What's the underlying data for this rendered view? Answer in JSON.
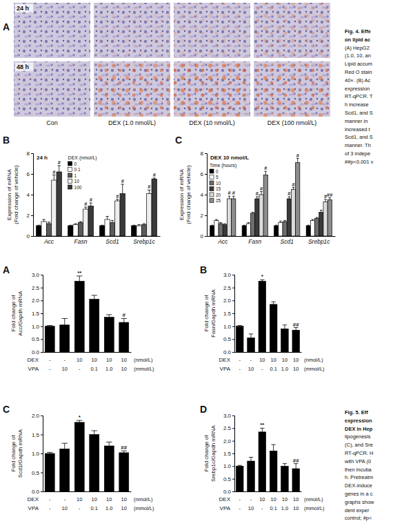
{
  "micrograph": {
    "panel": "A",
    "rows": [
      "24 h",
      "48 h"
    ],
    "columns": [
      "Con",
      "DEX (1.0 nmol/L)",
      "DEX (10 nmol/L)",
      "DEX (100 nmol/L)"
    ]
  },
  "captions": [
    {
      "title_lines": [
        "Fig. 4. Effe",
        "on lipid ac"
      ],
      "lines": [
        "(A) HepG2",
        "(1.0, 10, an",
        "Lipid accum",
        "Red O stain",
        "40×. (B) Ac",
        "expression",
        "RT-qPCR. T",
        "h increase",
        "Scd1, and S",
        "manner in",
        "increased t",
        "Scd1, and S",
        "manner. Th",
        "of 3 indepe",
        "##p<0.001 v"
      ]
    },
    {
      "title_lines": [
        "Fig. 5. Eff",
        "expression",
        "DEX in Hep"
      ],
      "lines": [
        "lipogenesis",
        "(C), and Sre",
        "RT-qPCR. H",
        "with VPA (0",
        "then incuba",
        "h. Pretreatm",
        "DEX-induce",
        "genes in a c",
        "graphs show",
        "dent exper",
        "control; #p<"
      ]
    }
  ],
  "chart_data": [
    {
      "type": "bar",
      "panel": "B",
      "annotation": "24 h",
      "ylabel": "Expression of mRNA (Fold change of vehicle)",
      "categories": [
        "Acc",
        "Fasn",
        "Scd1",
        "Srebp1c"
      ],
      "legend_title": "DEX (nmol/L)",
      "legend": "top",
      "ylim": [
        0,
        8
      ],
      "yticks": [
        0,
        2,
        4,
        6,
        8
      ],
      "grid": false,
      "series": [
        {
          "name": "0",
          "color": "#000000",
          "values": [
            1.0,
            1.0,
            1.0,
            1.0
          ],
          "errors": [
            0.05,
            0.05,
            0.05,
            0.05
          ],
          "sig_labels": [
            null,
            null,
            null,
            null
          ]
        },
        {
          "name": "0.1",
          "color": "#ffffff",
          "values": [
            1.4,
            1.1,
            1.6,
            1.0
          ],
          "errors": [
            0.2,
            0.1,
            0.3,
            0.1
          ],
          "sig_labels": [
            null,
            null,
            null,
            null
          ]
        },
        {
          "name": "1",
          "color": "#5a5a5a",
          "values": [
            1.2,
            1.3,
            1.3,
            1.1
          ],
          "errors": [
            0.15,
            0.1,
            0.2,
            0.1
          ],
          "sig_labels": [
            null,
            null,
            null,
            null
          ]
        },
        {
          "name": "10",
          "color": "#eeeeee",
          "values": [
            5.4,
            2.6,
            3.4,
            4.1
          ],
          "errors": [
            0.5,
            0.2,
            0.15,
            0.35
          ],
          "sig_labels": [
            "#",
            "#",
            "#",
            "#"
          ]
        },
        {
          "name": "100",
          "color": "#3a3a3a",
          "values": [
            6.2,
            2.9,
            4.1,
            5.5
          ],
          "errors": [
            0.6,
            0.3,
            0.9,
            0.1
          ],
          "sig_labels": [
            "#",
            "#",
            "#",
            "#"
          ]
        }
      ]
    },
    {
      "type": "bar",
      "panel": "C",
      "annotation": "DEX 10 nmol/L",
      "ylabel": "Expression of mRNA (Fold change of vehicle)",
      "categories": [
        "Acc",
        "Fasn",
        "Scd1",
        "Srebp1c"
      ],
      "legend_title": "Time (hours)",
      "legend": "top-left",
      "ylim": [
        0,
        8
      ],
      "yticks": [
        0,
        2,
        4,
        6,
        8
      ],
      "grid": false,
      "series": [
        {
          "name": "0",
          "color": "#000000",
          "values": [
            1.0,
            1.0,
            1.0,
            1.0
          ],
          "errors": [
            0.05,
            0.05,
            0.05,
            0.05
          ],
          "sig_labels": [
            null,
            null,
            null,
            null
          ]
        },
        {
          "name": "5",
          "color": "#ffffff",
          "values": [
            1.5,
            1.2,
            1.3,
            1.5
          ],
          "errors": [
            0.1,
            0.1,
            0.15,
            0.1
          ],
          "sig_labels": [
            null,
            null,
            null,
            null
          ]
        },
        {
          "name": "10",
          "color": "#6e6e6e",
          "values": [
            1.2,
            2.2,
            1.4,
            1.7
          ],
          "errors": [
            0.1,
            0.1,
            0.1,
            0.1
          ],
          "sig_labels": [
            null,
            null,
            null,
            null
          ]
        },
        {
          "name": "15",
          "color": "#3a3a3a",
          "values": [
            1.1,
            3.6,
            3.6,
            2.3
          ],
          "errors": [
            0.1,
            0.2,
            0.2,
            0.2
          ],
          "sig_labels": [
            null,
            "#",
            "#",
            null
          ]
        },
        {
          "name": "20",
          "color": "#dcdcdc",
          "values": [
            3.6,
            4.0,
            4.5,
            3.3
          ],
          "errors": [
            0.25,
            0.3,
            0.2,
            0.25
          ],
          "sig_labels": [
            "#",
            "#",
            "#",
            "#"
          ]
        },
        {
          "name": "25",
          "color": "#8c8c8c",
          "values": [
            3.6,
            5.9,
            7.1,
            3.5
          ],
          "errors": [
            0.25,
            0.35,
            0.4,
            0.2
          ],
          "sig_labels": [
            "#",
            "#",
            "#",
            "##"
          ]
        }
      ]
    },
    {
      "type": "bar",
      "panel": "A",
      "ylabel": "Fold change of Acc/Gapdh mRNA",
      "color": "#000000",
      "category_rows": [
        {
          "name": "DEX",
          "labels": [
            "-",
            "-",
            "10",
            "10",
            "10",
            "10"
          ],
          "unit": "(nmol/L)"
        },
        {
          "name": "VPA",
          "labels": [
            "-",
            "10",
            "-",
            "0.1",
            "1.0",
            "10"
          ],
          "unit": "(mmol/L)"
        }
      ],
      "values": [
        1.0,
        1.05,
        2.75,
        2.05,
        1.35,
        1.15
      ],
      "errors": [
        0.03,
        0.25,
        0.2,
        0.15,
        0.1,
        0.15
      ],
      "sig_labels": [
        null,
        null,
        "**",
        null,
        null,
        "#"
      ],
      "ylim": [
        0,
        3
      ],
      "yticks": [
        {
          "value": 0,
          "label": "0.0"
        },
        0.5,
        {
          "value": 1,
          "label": "1.0"
        },
        1.5,
        {
          "value": 2,
          "label": "2.0"
        },
        2.5,
        {
          "value": 3,
          "label": "3.0"
        }
      ],
      "grid": false
    },
    {
      "type": "bar",
      "panel": "B",
      "ylabel": "Fold change of Fasn/Gapdh mRNA",
      "color": "#000000",
      "category_rows": [
        {
          "name": "DEX",
          "labels": [
            "-",
            "-",
            "10",
            "10",
            "10",
            "10"
          ],
          "unit": "(nmol/L)"
        },
        {
          "name": "VPA",
          "labels": [
            "-",
            "10",
            "-",
            "0.1",
            "1.0",
            "10"
          ],
          "unit": "(mmol/L)"
        }
      ],
      "values": [
        1.0,
        0.55,
        2.75,
        1.85,
        0.9,
        0.85
      ],
      "errors": [
        0.03,
        0.15,
        0.05,
        0.1,
        0.15,
        0.1
      ],
      "sig_labels": [
        null,
        null,
        "*",
        null,
        null,
        "##"
      ],
      "ylim": [
        0,
        3
      ],
      "yticks": [
        {
          "value": 0,
          "label": "0.0"
        },
        0.5,
        {
          "value": 1,
          "label": "1.0"
        },
        1.5,
        {
          "value": 2,
          "label": "2.0"
        },
        2.5,
        {
          "value": 3,
          "label": "3.0"
        }
      ],
      "grid": false
    },
    {
      "type": "bar",
      "panel": "C",
      "ylabel": "Fold change of Scd1/Gapdh mRNA",
      "color": "#000000",
      "category_rows": [
        {
          "name": "DEX",
          "labels": [
            "-",
            "-",
            "10",
            "10",
            "10",
            "10"
          ],
          "unit": "(nmol/L)"
        },
        {
          "name": "VPA",
          "labels": [
            "-",
            "10",
            "-",
            "0.1",
            "1.0",
            "10"
          ],
          "unit": "(mmol/L)"
        }
      ],
      "values": [
        1.0,
        1.12,
        1.82,
        1.5,
        1.2,
        1.02
      ],
      "errors": [
        0.03,
        0.15,
        0.05,
        0.1,
        0.1,
        0.05
      ],
      "sig_labels": [
        null,
        null,
        "*",
        null,
        null,
        "##"
      ],
      "ylim": [
        0,
        2
      ],
      "yticks": [
        {
          "value": 0,
          "label": "0.0"
        },
        0.5,
        {
          "value": 1,
          "label": "1.0"
        },
        1.5,
        {
          "value": 2,
          "label": "2.0"
        }
      ],
      "grid": false
    },
    {
      "type": "bar",
      "panel": "D",
      "ylabel": "Fold change of Srebp1c/Gapdh mRNA",
      "color": "#000000",
      "category_rows": [
        {
          "name": "DEX",
          "labels": [
            "-",
            "-",
            "10",
            "10",
            "10",
            "10"
          ],
          "unit": "(nmol/L)"
        },
        {
          "name": "VPA",
          "labels": [
            "-",
            "10",
            "-",
            "0.1",
            "1.0",
            "10"
          ],
          "unit": "(mmol/L)"
        }
      ],
      "values": [
        1.0,
        1.2,
        2.35,
        1.6,
        1.0,
        0.9
      ],
      "errors": [
        0.03,
        0.15,
        0.15,
        0.25,
        0.1,
        0.2
      ],
      "sig_labels": [
        null,
        null,
        "**",
        null,
        null,
        "##"
      ],
      "ylim": [
        0,
        3
      ],
      "yticks": [
        {
          "value": 0,
          "label": "0.0"
        },
        0.5,
        {
          "value": 1,
          "label": "1.0"
        },
        1.5,
        {
          "value": 2,
          "label": "2.0"
        },
        2.5,
        {
          "value": 3,
          "label": "3.0"
        }
      ],
      "grid": false
    }
  ]
}
